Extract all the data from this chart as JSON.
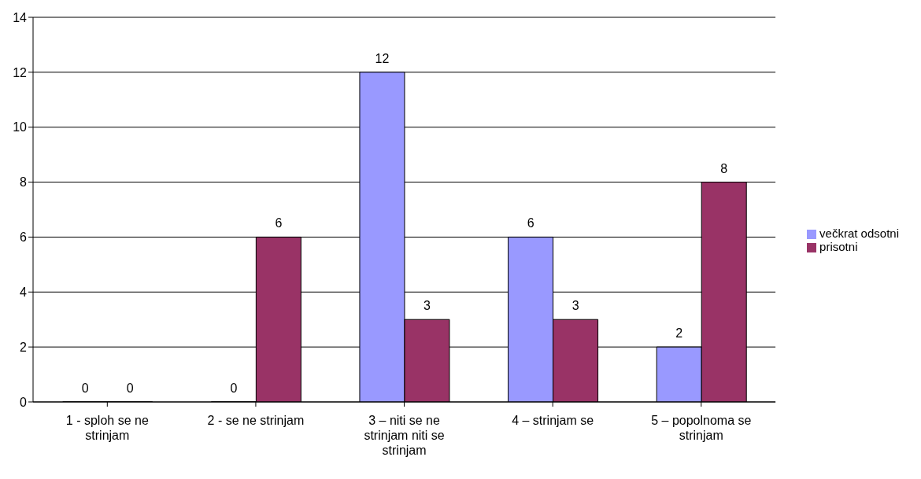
{
  "chart_data": {
    "type": "bar",
    "categories": [
      "1 - sploh se ne strinjam",
      "2 - se ne strinjam",
      "3 – niti se ne strinjam niti se strinjam",
      "4 – strinjam se",
      "5 – popolnoma se strinjam"
    ],
    "series": [
      {
        "name": "večkrat odsotni",
        "color": "#9999ff",
        "values": [
          0,
          0,
          12,
          6,
          2
        ]
      },
      {
        "name": "prisotni",
        "color": "#993366",
        "values": [
          0,
          6,
          3,
          3,
          8
        ]
      }
    ],
    "ylim": [
      0,
      14
    ],
    "yticks": [
      0,
      2,
      4,
      6,
      8,
      10,
      12,
      14
    ],
    "grid": "y",
    "legend": "right",
    "data_labels": true
  }
}
